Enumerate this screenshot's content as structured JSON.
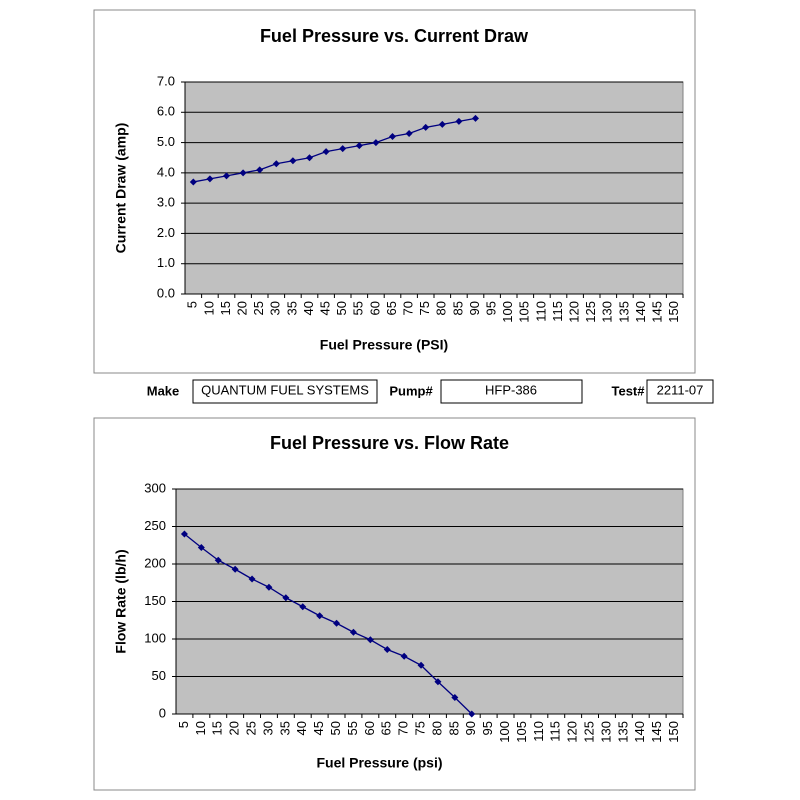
{
  "chart_data": [
    {
      "type": "line",
      "title": "Fuel Pressure vs. Current Draw",
      "x_label": "Fuel Pressure (PSI)",
      "y_label": "Current Draw (amp)",
      "categories": [
        "5",
        "10",
        "15",
        "20",
        "25",
        "30",
        "35",
        "40",
        "45",
        "50",
        "55",
        "60",
        "65",
        "70",
        "75",
        "80",
        "85",
        "90",
        "95",
        "100",
        "105",
        "110",
        "115",
        "120",
        "125",
        "130",
        "135",
        "140",
        "145",
        "150"
      ],
      "series": [
        {
          "color": "#000080",
          "values": [
            3.7,
            3.8,
            3.9,
            4.0,
            4.1,
            4.3,
            4.4,
            4.5,
            4.7,
            4.8,
            4.9,
            5.0,
            5.2,
            5.3,
            5.5,
            5.6,
            5.7,
            5.8,
            null,
            null,
            null,
            null,
            null,
            null,
            null,
            null,
            null,
            null,
            null,
            null
          ]
        }
      ],
      "ylim": [
        0,
        7
      ],
      "yticks": [
        {
          "value": 0,
          "label": "0.0"
        },
        {
          "value": 1,
          "label": "1.0"
        },
        {
          "value": 2,
          "label": "2.0"
        },
        {
          "value": 3,
          "label": "3.0"
        },
        {
          "value": 4,
          "label": "4.0"
        },
        {
          "value": 5,
          "label": "5.0"
        },
        {
          "value": 6,
          "label": "6.0"
        },
        {
          "value": 7,
          "label": "7.0"
        }
      ],
      "grid": true
    },
    {
      "type": "line",
      "title": "Fuel Pressure vs. Flow Rate",
      "x_label": "Fuel Pressure (psi)",
      "y_label": "Flow Rate (lb/h)",
      "categories": [
        "5",
        "10",
        "15",
        "20",
        "25",
        "30",
        "35",
        "40",
        "45",
        "50",
        "55",
        "60",
        "65",
        "70",
        "75",
        "80",
        "85",
        "90",
        "95",
        "100",
        "105",
        "110",
        "115",
        "120",
        "125",
        "130",
        "135",
        "140",
        "145",
        "150"
      ],
      "series": [
        {
          "color": "#000080",
          "values": [
            240,
            222,
            205,
            193,
            180,
            169,
            155,
            143,
            131,
            121,
            109,
            99,
            86,
            77,
            65,
            43,
            22,
            0,
            null,
            null,
            null,
            null,
            null,
            null,
            null,
            null,
            null,
            null,
            null,
            null
          ]
        }
      ],
      "ylim": [
        0,
        300
      ],
      "yticks": [
        0,
        50,
        100,
        150,
        200,
        250,
        300
      ],
      "grid": true
    }
  ],
  "info": {
    "make_label": "Make",
    "make": "QUANTUM FUEL SYSTEMS",
    "pump_label": "Pump#",
    "pump": "HFP-386",
    "test_label": "Test#",
    "test": "2211-07"
  }
}
